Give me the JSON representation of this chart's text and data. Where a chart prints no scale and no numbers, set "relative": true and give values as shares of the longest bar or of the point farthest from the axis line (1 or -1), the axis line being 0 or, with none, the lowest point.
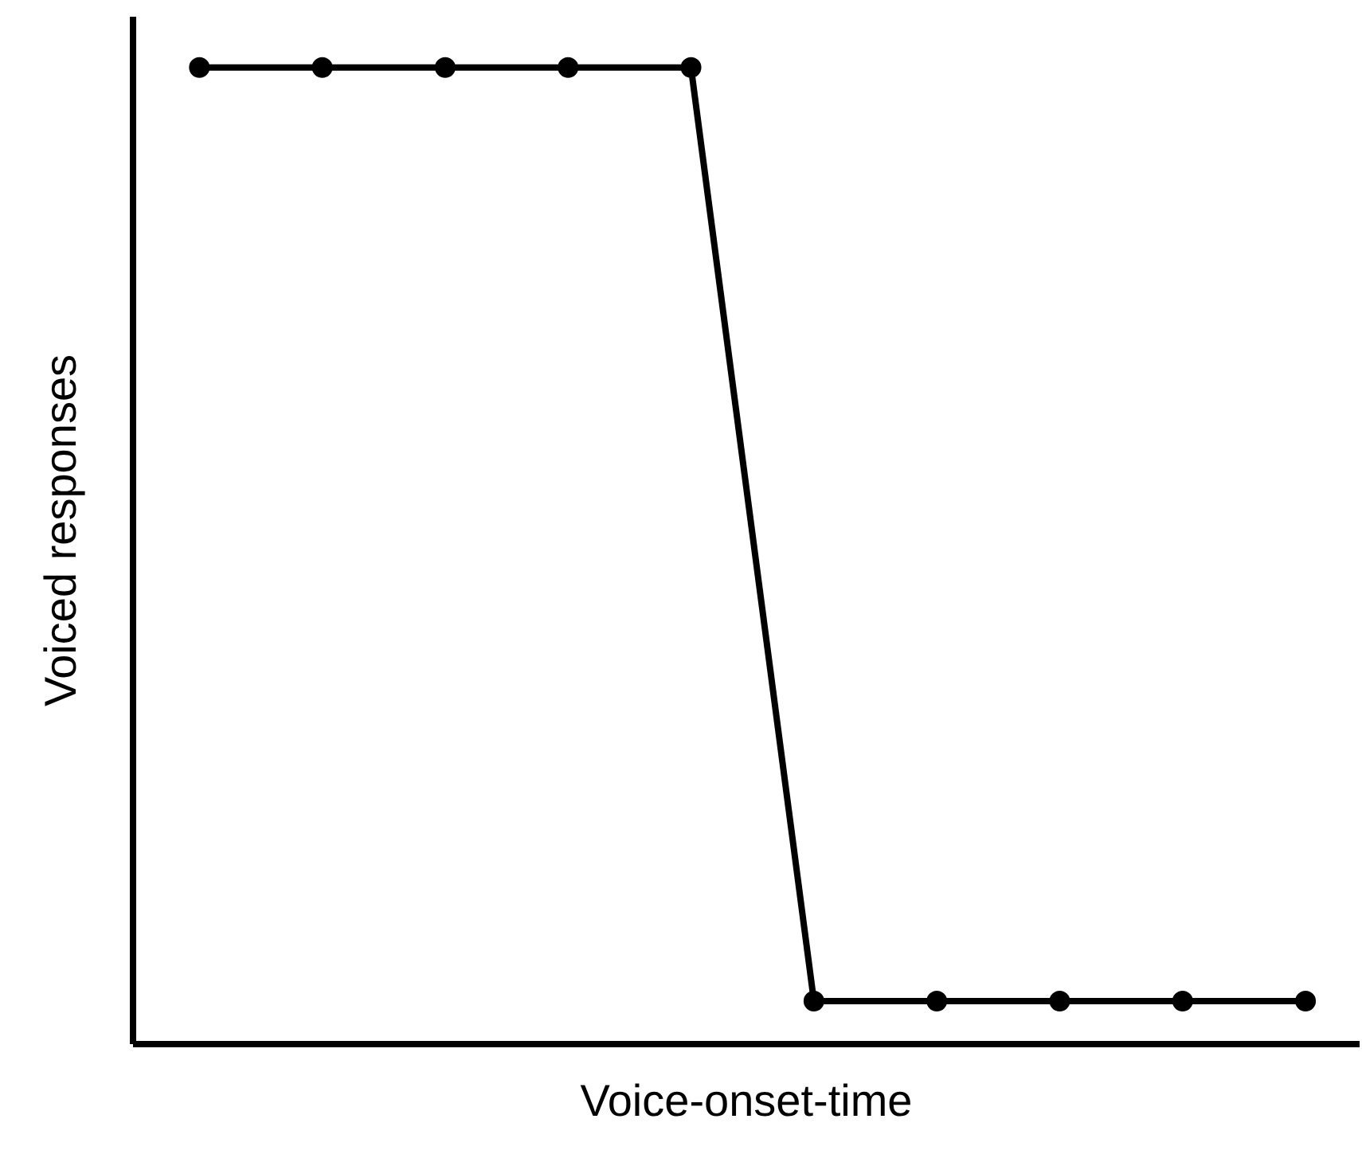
{
  "chart_data": {
    "type": "line",
    "xlabel": "Voice-onset-time",
    "ylabel": "Voiced responses",
    "relative": true,
    "marker": "circle",
    "line_style": "solid",
    "color": "#000000",
    "categories": [
      null,
      null,
      null,
      null,
      null,
      null,
      null,
      null,
      null,
      null
    ],
    "values": [
      1,
      1,
      1,
      1,
      1,
      0.044,
      0.044,
      0.044,
      0.044,
      0.044
    ]
  }
}
